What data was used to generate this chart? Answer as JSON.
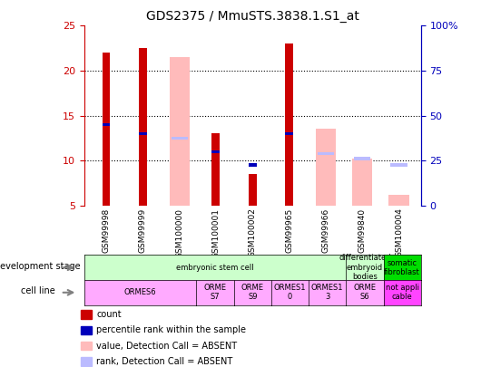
{
  "title": "GDS2375 / MmuSTS.3838.1.S1_at",
  "samples": [
    "GSM99998",
    "GSM99999",
    "GSM100000",
    "GSM100001",
    "GSM100002",
    "GSM99965",
    "GSM99966",
    "GSM99840",
    "GSM100004"
  ],
  "count_values": [
    22.0,
    22.5,
    null,
    13.0,
    8.5,
    23.0,
    null,
    null,
    null
  ],
  "rank_values": [
    14.0,
    13.0,
    null,
    11.0,
    9.5,
    13.0,
    null,
    null,
    null
  ],
  "absent_value_values": [
    null,
    null,
    21.5,
    null,
    null,
    null,
    13.5,
    10.2,
    6.2
  ],
  "absent_rank_values": [
    null,
    null,
    12.5,
    null,
    null,
    null,
    10.8,
    10.2,
    9.5
  ],
  "y_min": 5,
  "y_max": 25,
  "y_ticks_left": [
    5,
    10,
    15,
    20,
    25
  ],
  "y_ticks_right": [
    0,
    25,
    50,
    75,
    100
  ],
  "count_color": "#cc0000",
  "rank_color": "#0000bb",
  "absent_value_color": "#ffbbbb",
  "absent_rank_color": "#bbbbff",
  "development_stage_label": "development stage",
  "cell_line_label": "cell line",
  "dev_groups": [
    {
      "cols": [
        0,
        1,
        2,
        3,
        4,
        5,
        6
      ],
      "text": "embryonic stem cell",
      "color": "#ccffcc"
    },
    {
      "cols": [
        7
      ],
      "text": "differentiated\nembryoid\nbodies",
      "color": "#ccffcc"
    },
    {
      "cols": [
        8
      ],
      "text": "somatic\nfibroblast",
      "color": "#00dd00"
    }
  ],
  "cell_groups": [
    {
      "cols": [
        0,
        1,
        2
      ],
      "text": "ORMES6",
      "color": "#ffaaff"
    },
    {
      "cols": [
        3
      ],
      "text": "ORME\nS7",
      "color": "#ffaaff"
    },
    {
      "cols": [
        4
      ],
      "text": "ORME\nS9",
      "color": "#ffaaff"
    },
    {
      "cols": [
        5
      ],
      "text": "ORMES1\n0",
      "color": "#ffaaff"
    },
    {
      "cols": [
        6
      ],
      "text": "ORMES1\n3",
      "color": "#ffaaff"
    },
    {
      "cols": [
        7
      ],
      "text": "ORME\nS6",
      "color": "#ffaaff"
    },
    {
      "cols": [
        8
      ],
      "text": "not appli\ncable",
      "color": "#ff44ff"
    }
  ],
  "legend_items": [
    {
      "color": "#cc0000",
      "label": "count"
    },
    {
      "color": "#0000bb",
      "label": "percentile rank within the sample"
    },
    {
      "color": "#ffbbbb",
      "label": "value, Detection Call = ABSENT"
    },
    {
      "color": "#bbbbff",
      "label": "rank, Detection Call = ABSENT"
    }
  ],
  "left_axis_color": "#cc0000",
  "right_axis_color": "#0000bb"
}
